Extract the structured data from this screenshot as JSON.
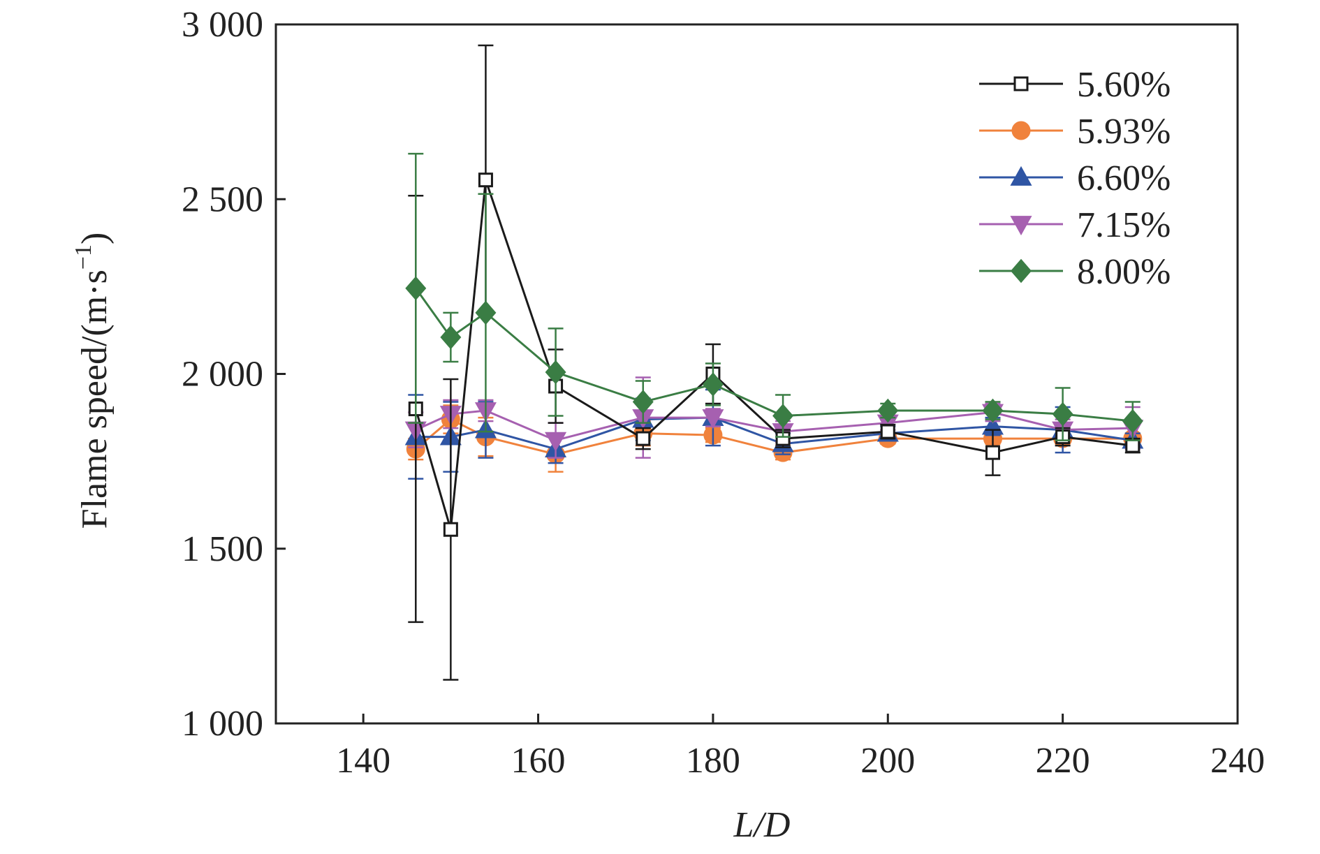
{
  "chart_data": {
    "type": "line",
    "xlabel": "L/D",
    "ylabel": "Flame speed/(m·s",
    "ylabel_sup": "−1",
    "ylabel_close": ")",
    "xlim": [
      130,
      240
    ],
    "ylim": [
      1000,
      3000
    ],
    "xticks": [
      140,
      160,
      180,
      200,
      220,
      240
    ],
    "yticks": [
      1000,
      1500,
      2000,
      2500,
      3000
    ],
    "xtick_labels": [
      "140",
      "160",
      "180",
      "200",
      "220",
      "240"
    ],
    "ytick_labels": [
      "1 000",
      "1 500",
      "2 000",
      "2 500",
      "3 000"
    ],
    "grid": false,
    "legend_position": "top-right",
    "x": [
      146,
      150,
      154,
      162,
      172,
      180,
      188,
      200,
      212,
      220,
      228
    ],
    "series": [
      {
        "name": "5.60%",
        "color": "#1a1a1a",
        "marker": "square-open",
        "values": [
          1900,
          1555,
          2555,
          1965,
          1815,
          2000,
          1815,
          1835,
          1775,
          1820,
          1795
        ],
        "errors": [
          610,
          430,
          385,
          105,
          30,
          85,
          25,
          20,
          65,
          25,
          20
        ]
      },
      {
        "name": "5.93%",
        "color": "#f0823c",
        "marker": "circle",
        "values": [
          1785,
          1870,
          1820,
          1770,
          1830,
          1825,
          1775,
          1815,
          1815,
          1815,
          1815
        ],
        "errors": [
          30,
          40,
          55,
          50,
          35,
          20,
          20,
          15,
          15,
          15,
          15
        ]
      },
      {
        "name": "6.60%",
        "color": "#2f55a4",
        "marker": "triangle-up",
        "values": [
          1820,
          1820,
          1840,
          1785,
          1870,
          1875,
          1800,
          1830,
          1850,
          1840,
          1810
        ],
        "errors": [
          120,
          100,
          80,
          40,
          60,
          80,
          30,
          20,
          25,
          65,
          20
        ]
      },
      {
        "name": "7.15%",
        "color": "#a660b0",
        "marker": "triangle-down",
        "values": [
          1840,
          1885,
          1895,
          1810,
          1875,
          1875,
          1835,
          1860,
          1890,
          1840,
          1845
        ],
        "errors": [
          50,
          40,
          30,
          50,
          115,
          25,
          30,
          20,
          25,
          30,
          60
        ]
      },
      {
        "name": "8.00%",
        "color": "#3a7d44",
        "marker": "diamond",
        "values": [
          2245,
          2105,
          2175,
          2005,
          1920,
          1970,
          1880,
          1895,
          1895,
          1885,
          1865
        ],
        "errors": [
          385,
          70,
          340,
          125,
          60,
          60,
          60,
          20,
          25,
          75,
          55
        ]
      }
    ]
  }
}
